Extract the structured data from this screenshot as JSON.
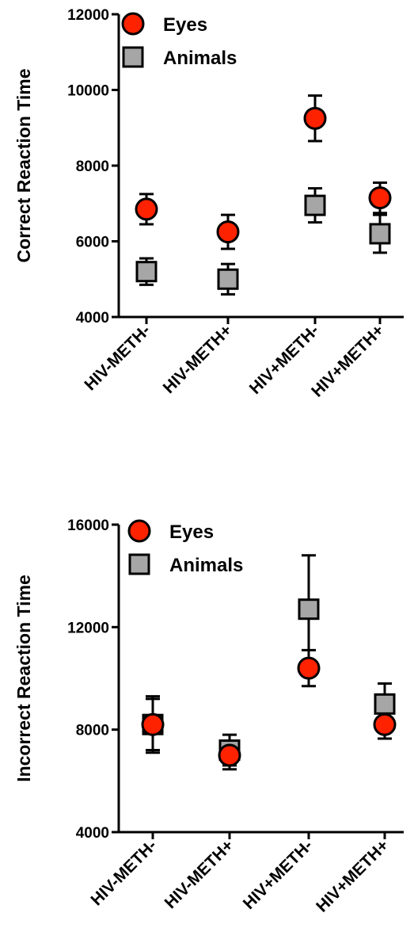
{
  "chart_data": [
    {
      "type": "scatter",
      "title": "",
      "xlabel": "",
      "ylabel": "Correct Reaction Time",
      "ylim": [
        4000,
        12000
      ],
      "yticks": [
        "4000",
        "6000",
        "8000",
        "10000",
        "12000"
      ],
      "categories": [
        "HIV-METH-",
        "HIV-METH+",
        "HIV+METH-",
        "HIV+METH+"
      ],
      "legend_position": "top-left",
      "series": [
        {
          "name": "Eyes",
          "marker": "circle",
          "color": "#ff2200",
          "values": [
            6850,
            6250,
            9250,
            7150
          ],
          "error": [
            400,
            450,
            600,
            400
          ]
        },
        {
          "name": "Animals",
          "marker": "square",
          "color": "#a6a6a6",
          "values": [
            5200,
            5000,
            6950,
            6200
          ],
          "error": [
            350,
            400,
            450,
            500
          ]
        }
      ]
    },
    {
      "type": "scatter",
      "title": "",
      "xlabel": "",
      "ylabel": "Incorrect Reaction Time",
      "ylim": [
        4000,
        16000
      ],
      "yticks": [
        "4000",
        "8000",
        "12000",
        "16000"
      ],
      "categories": [
        "HIV-METH-",
        "HIV-METH+",
        "HIV+METH-",
        "HIV+METH+"
      ],
      "legend_position": "top-left",
      "series": [
        {
          "name": "Eyes",
          "marker": "circle",
          "color": "#ff2200",
          "values": [
            8200,
            7000,
            10400,
            8200
          ],
          "error": [
            1000,
            550,
            700,
            550
          ]
        },
        {
          "name": "Animals",
          "marker": "square",
          "color": "#a6a6a6",
          "values": [
            8200,
            7200,
            12700,
            9000
          ],
          "error": [
            1100,
            600,
            2100,
            800
          ]
        }
      ]
    }
  ]
}
